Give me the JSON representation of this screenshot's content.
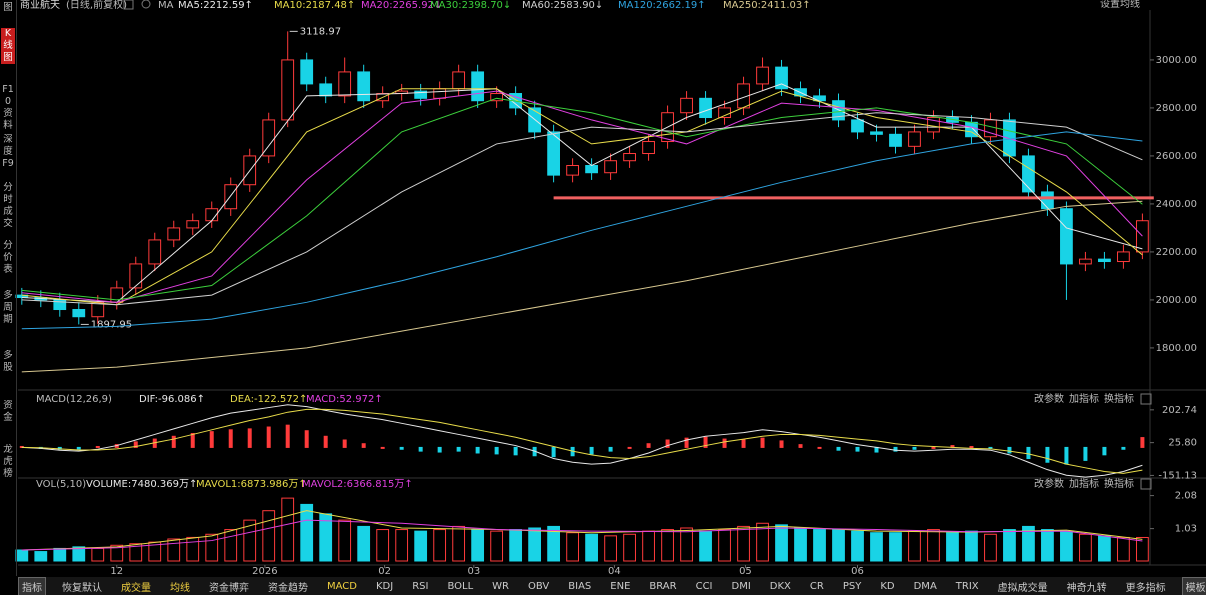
{
  "header": {
    "title": "商业航天",
    "subtitle": "(日线,前复权)",
    "ma_label": "MA",
    "settings": "设置均线"
  },
  "sidebar": [
    "图",
    "K线图",
    "F10资料",
    "深度F9",
    "分时成交",
    "分价表",
    "多周期",
    "多股",
    "资金",
    "龙虎榜"
  ],
  "panel_buttons": [
    "改参数",
    "加指标",
    "换指标"
  ],
  "tabs": [
    "指标",
    "恢复默认",
    "成交量",
    "均线",
    "资金博弈",
    "资金趋势",
    "MACD",
    "KDJ",
    "RSI",
    "BOLL",
    "WR",
    "OBV",
    "BIAS",
    "ENE",
    "BRAR",
    "CCI",
    "DMI",
    "DKX",
    "CR",
    "PSY",
    "KD",
    "DMA",
    "TRIX",
    "虚拟成交量",
    "神奇九转",
    "更多指标",
    "模板"
  ],
  "chart_data": [
    {
      "type": "candlestick",
      "up_color": "#ff3b3b",
      "down_color": "#19d3e6",
      "xlim": [
        -0.2,
        59.4
      ],
      "ylim": [
        1633,
        3208
      ],
      "yticks": [
        {
          "value": 1800,
          "label": "1800.00"
        },
        {
          "value": 2000,
          "label": "2000.00"
        },
        {
          "value": 2200,
          "label": "2200.00"
        },
        {
          "value": 2400,
          "label": "2400.00"
        },
        {
          "value": 2600,
          "label": "2600.00"
        },
        {
          "value": 2800,
          "label": "2800.00"
        },
        {
          "value": 3000,
          "label": "3000.00"
        }
      ],
      "open": [
        2020,
        2010,
        2000,
        1960,
        1930,
        1990,
        2050,
        2150,
        2250,
        2300,
        2330,
        2380,
        2480,
        2600,
        2750,
        3000,
        2900,
        2850,
        2950,
        2830,
        2860,
        2870,
        2840,
        2880,
        2950,
        2830,
        2860,
        2800,
        2700,
        2520,
        2560,
        2530,
        2580,
        2610,
        2660,
        2780,
        2840,
        2760,
        2800,
        2900,
        2970,
        2880,
        2850,
        2830,
        2750,
        2700,
        2690,
        2640,
        2700,
        2760,
        2740,
        2680,
        2750,
        2600,
        2450,
        2380,
        2150,
        2170,
        2160,
        2200
      ],
      "high": [
        2050,
        2040,
        2030,
        1990,
        2020,
        2080,
        2180,
        2280,
        2330,
        2360,
        2410,
        2510,
        2630,
        2780,
        3118.97,
        3030,
        2930,
        3010,
        2980,
        2890,
        2900,
        2900,
        2910,
        2980,
        2980,
        2890,
        2890,
        2830,
        2730,
        2590,
        2590,
        2610,
        2640,
        2690,
        2810,
        2870,
        2870,
        2830,
        2930,
        3010,
        3000,
        2910,
        2880,
        2860,
        2780,
        2730,
        2720,
        2730,
        2790,
        2790,
        2770,
        2780,
        2780,
        2630,
        2480,
        2410,
        2200,
        2200,
        2230,
        2360
      ],
      "low": [
        1980,
        1970,
        1930,
        1897.95,
        1900,
        1960,
        2020,
        2120,
        2220,
        2270,
        2300,
        2350,
        2450,
        2570,
        2720,
        2870,
        2820,
        2820,
        2800,
        2800,
        2830,
        2810,
        2810,
        2850,
        2800,
        2800,
        2770,
        2670,
        2490,
        2490,
        2500,
        2500,
        2550,
        2580,
        2630,
        2750,
        2730,
        2730,
        2770,
        2870,
        2850,
        2820,
        2800,
        2720,
        2670,
        2660,
        2610,
        2610,
        2670,
        2710,
        2650,
        2650,
        2570,
        2420,
        2350,
        2000,
        2120,
        2130,
        2130,
        2170
      ],
      "close": [
        2010,
        2000,
        1960,
        1930,
        1990,
        2050,
        2150,
        2250,
        2300,
        2330,
        2380,
        2480,
        2600,
        2750,
        3000,
        2900,
        2850,
        2950,
        2830,
        2860,
        2870,
        2840,
        2880,
        2950,
        2830,
        2860,
        2800,
        2700,
        2520,
        2560,
        2530,
        2580,
        2610,
        2660,
        2780,
        2840,
        2760,
        2800,
        2900,
        2970,
        2880,
        2850,
        2830,
        2750,
        2700,
        2690,
        2640,
        2700,
        2760,
        2740,
        2680,
        2750,
        2600,
        2450,
        2380,
        2150,
        2170,
        2160,
        2200,
        2330
      ],
      "series": [
        {
          "name": "MA5:2212.59↑",
          "color": "#e8e8e8",
          "x": [
            0,
            5,
            10,
            15,
            20,
            25,
            30,
            35,
            40,
            45,
            50,
            55,
            59
          ],
          "values": [
            2010,
            1990,
            2330,
            2850,
            2860,
            2880,
            2560,
            2760,
            2900,
            2720,
            2720,
            2300,
            2212.59
          ]
        },
        {
          "name": "MA10:2187.48↑",
          "color": "#e8dc4a",
          "x": [
            0,
            5,
            10,
            15,
            20,
            25,
            30,
            35,
            40,
            45,
            50,
            55,
            59
          ],
          "values": [
            2020,
            1980,
            2200,
            2700,
            2880,
            2880,
            2650,
            2700,
            2870,
            2760,
            2700,
            2450,
            2187.48
          ]
        },
        {
          "name": "MA20:2265.92↓",
          "color": "#e040e0",
          "x": [
            0,
            5,
            10,
            15,
            20,
            25,
            30,
            35,
            40,
            45,
            50,
            55,
            59
          ],
          "values": [
            2030,
            1990,
            2100,
            2500,
            2820,
            2870,
            2750,
            2650,
            2820,
            2790,
            2720,
            2600,
            2265.92
          ]
        },
        {
          "name": "MA30:2398.70↓",
          "color": "#3ccf3c",
          "x": [
            0,
            5,
            10,
            15,
            20,
            25,
            30,
            35,
            40,
            45,
            50,
            55,
            59
          ],
          "values": [
            2040,
            2000,
            2060,
            2350,
            2700,
            2840,
            2780,
            2680,
            2760,
            2800,
            2740,
            2650,
            2398.7
          ]
        },
        {
          "name": "MA60:2583.90↓",
          "color": "#cfcfcf",
          "x": [
            0,
            5,
            10,
            15,
            20,
            25,
            30,
            35,
            40,
            45,
            50,
            55,
            59
          ],
          "values": [
            2000,
            1980,
            2020,
            2200,
            2450,
            2650,
            2720,
            2700,
            2740,
            2780,
            2760,
            2720,
            2583.9
          ]
        },
        {
          "name": "MA120:2662.19↑",
          "color": "#2fa4e0",
          "x": [
            0,
            5,
            10,
            15,
            20,
            25,
            30,
            35,
            40,
            45,
            50,
            55,
            59
          ],
          "values": [
            1880,
            1890,
            1920,
            1990,
            2080,
            2180,
            2290,
            2390,
            2490,
            2580,
            2650,
            2700,
            2662.19
          ]
        },
        {
          "name": "MA250:2411.03↑",
          "color": "#d8c890",
          "x": [
            0,
            5,
            10,
            15,
            20,
            25,
            30,
            35,
            40,
            45,
            50,
            55,
            59
          ],
          "values": [
            1700,
            1720,
            1760,
            1800,
            1870,
            1940,
            2010,
            2080,
            2160,
            2240,
            2320,
            2390,
            2411.03
          ]
        }
      ],
      "hline": {
        "value": 2425,
        "x": [
          28,
          59.6
        ],
        "color": "#f06060"
      },
      "annotations": [
        {
          "x": 14,
          "value": 3118.97
        },
        {
          "x": 3,
          "value": 1897.95
        }
      ]
    },
    {
      "type": "bar",
      "title": "MACD(12,26,9)",
      "name": "MACD:52.972↑",
      "label_color": "#e040e0",
      "up_color": "#ff3b3b",
      "down_color": "#19d3e6",
      "xlim": [
        -0.2,
        59.4
      ],
      "ylim": [
        -165,
        245
      ],
      "yticks": [
        {
          "value": -151.13,
          "label": "-151.13"
        },
        {
          "value": 25.8,
          "label": "25.80"
        },
        202.74
      ],
      "values": [
        5,
        -5,
        -10,
        -8,
        5,
        15,
        30,
        45,
        60,
        75,
        85,
        95,
        100,
        110,
        120,
        90,
        60,
        40,
        20,
        0,
        -10,
        -20,
        -25,
        -20,
        -30,
        -35,
        -40,
        -45,
        -50,
        -45,
        -35,
        -20,
        0,
        20,
        40,
        50,
        55,
        45,
        40,
        50,
        35,
        15,
        0,
        -15,
        -20,
        -25,
        -20,
        -10,
        0,
        10,
        5,
        -5,
        -30,
        -60,
        -80,
        -90,
        -70,
        -40,
        -10,
        52.972
      ],
      "series": [
        {
          "name": "DIF:-96.086↑",
          "color": "#e8e8e8",
          "values": [
            0,
            -5,
            -15,
            -20,
            -10,
            10,
            40,
            70,
            100,
            130,
            160,
            185,
            200,
            215,
            230,
            220,
            200,
            180,
            165,
            150,
            130,
            110,
            90,
            70,
            50,
            30,
            10,
            -20,
            -60,
            -80,
            -90,
            -85,
            -60,
            -30,
            10,
            40,
            60,
            70,
            80,
            95,
            85,
            70,
            55,
            35,
            15,
            0,
            -15,
            -20,
            -15,
            -10,
            -10,
            -15,
            -40,
            -80,
            -120,
            -150,
            -160,
            -150,
            -130,
            -96.086
          ]
        },
        {
          "name": "DEA:-122.572↑",
          "color": "#e8dc4a",
          "values": [
            0,
            -2,
            -8,
            -14,
            -14,
            -8,
            5,
            25,
            45,
            70,
            95,
            120,
            145,
            165,
            190,
            205,
            205,
            200,
            190,
            180,
            165,
            150,
            135,
            115,
            95,
            75,
            55,
            30,
            5,
            -20,
            -40,
            -55,
            -60,
            -50,
            -30,
            -10,
            10,
            30,
            45,
            60,
            70,
            70,
            65,
            55,
            45,
            35,
            20,
            10,
            5,
            0,
            -5,
            -8,
            -20,
            -35,
            -60,
            -90,
            -110,
            -130,
            -140,
            -122.572
          ]
        }
      ]
    },
    {
      "type": "bar",
      "title": "VOL(5,10)",
      "name": "VOLUME:7480.369万↑",
      "label_color": "#e8e8e8",
      "up_color": "#ff3b3b",
      "down_color": "#19d3e6",
      "xlim": [
        -0.2,
        59.4
      ],
      "ylim": [
        0,
        2.29
      ],
      "yticks": [
        1.03,
        2.08
      ],
      "xticks": [
        {
          "value": 5,
          "label": "12"
        },
        {
          "value": 12.8,
          "label": "2026"
        },
        {
          "value": 19.1,
          "label": "02"
        },
        {
          "value": 23.8,
          "label": "03"
        },
        {
          "value": 31.2,
          "label": "04"
        },
        {
          "value": 38.1,
          "label": "05"
        },
        {
          "value": 44,
          "label": "06"
        }
      ],
      "values": [
        0.35,
        0.3,
        0.4,
        0.45,
        0.4,
        0.5,
        0.55,
        0.6,
        0.7,
        0.75,
        0.85,
        1,
        1.3,
        1.6,
        2,
        1.8,
        1.5,
        1.3,
        1.1,
        1,
        1,
        0.95,
        1,
        1.1,
        1,
        0.95,
        1,
        1.05,
        1.1,
        0.9,
        0.85,
        0.8,
        0.85,
        0.95,
        1,
        1.05,
        0.95,
        1,
        1.1,
        1.2,
        1.15,
        1.05,
        1,
        1,
        0.95,
        0.9,
        0.9,
        0.95,
        1,
        0.9,
        0.95,
        0.85,
        1,
        1.1,
        1,
        0.95,
        0.85,
        0.8,
        0.75,
        0.748
      ],
      "series": [
        {
          "name": "MAVOL1:6873.986万↑",
          "color": "#e8dc4a",
          "x": [
            0,
            5,
            10,
            15,
            20,
            25,
            30,
            35,
            40,
            45,
            50,
            55,
            59
          ],
          "values": [
            0.35,
            0.45,
            0.8,
            1.6,
            1.05,
            1,
            0.9,
            0.97,
            1.1,
            0.95,
            0.92,
            0.98,
            0.687
          ]
        },
        {
          "name": "MAVOL2:6366.815万↑",
          "color": "#e040e0",
          "x": [
            0,
            5,
            10,
            15,
            20,
            25,
            30,
            35,
            40,
            45,
            50,
            55,
            59
          ],
          "values": [
            0.35,
            0.42,
            0.65,
            1.3,
            1.2,
            1,
            0.95,
            0.93,
            1.05,
            1,
            0.93,
            0.95,
            0.637
          ]
        }
      ]
    }
  ]
}
